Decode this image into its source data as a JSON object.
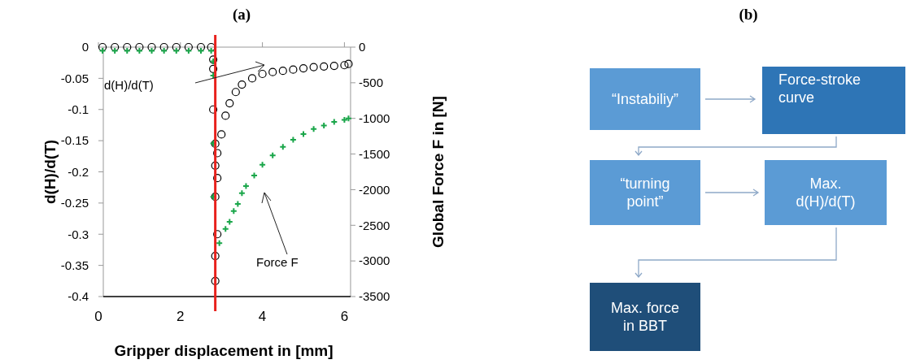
{
  "chart_data": [
    {
      "type": "scatter",
      "title": "(a)",
      "xlabel": "Gripper displacement in [mm]",
      "ylabel": "d(H)/d(T)",
      "y2label": "Global Force F in [N]",
      "xlim": [
        0,
        6.15
      ],
      "xticks": [
        0,
        2,
        4,
        6
      ],
      "ylim": [
        -0.4,
        0
      ],
      "yticks": [
        0,
        -0.05,
        -0.1,
        -0.15,
        -0.2,
        -0.25,
        -0.3,
        -0.35,
        -0.4
      ],
      "y2lim": [
        -3500,
        0
      ],
      "y2ticks": [
        0,
        -500,
        -1000,
        -1500,
        -2000,
        -2500,
        -3000,
        -3500
      ],
      "series": [
        {
          "color": "#000000",
          "marker": "circle",
          "x": [
            0.1,
            0.4,
            0.7,
            1.0,
            1.3,
            1.6,
            1.9,
            2.2,
            2.5,
            2.75,
            2.8,
            2.8,
            2.8,
            2.85,
            2.9,
            2.85,
            2.9,
            2.85,
            2.9,
            2.85,
            2.85,
            3.0,
            3.1,
            3.2,
            3.35,
            3.5,
            3.75,
            4.0,
            4.25,
            4.5,
            4.75,
            5.0,
            5.25,
            5.5,
            5.75,
            6.0,
            6.1
          ],
          "values": [
            0,
            0,
            0,
            0,
            0,
            0,
            0,
            0,
            0,
            0,
            -0.02,
            -0.035,
            -0.1,
            -0.155,
            -0.17,
            -0.19,
            -0.21,
            -0.24,
            -0.3,
            -0.335,
            -0.375,
            -0.14,
            -0.11,
            -0.09,
            -0.072,
            -0.06,
            -0.05,
            -0.043,
            -0.04,
            -0.038,
            -0.036,
            -0.034,
            -0.032,
            -0.031,
            -0.03,
            -0.029,
            -0.027
          ]
        },
        {
          "color": "#1aa64a",
          "marker": "cross",
          "axis": "y2",
          "x": [
            0.1,
            0.4,
            0.7,
            1.0,
            1.3,
            1.6,
            1.9,
            2.2,
            2.5,
            2.75,
            2.8,
            2.8,
            2.8,
            2.8,
            2.95,
            3.1,
            3.2,
            3.3,
            3.4,
            3.5,
            3.6,
            3.8,
            4.0,
            4.25,
            4.5,
            4.75,
            5.0,
            5.25,
            5.5,
            5.75,
            6.0,
            6.1
          ],
          "values": [
            -50,
            -50,
            -50,
            -50,
            -50,
            -50,
            -50,
            -50,
            -50,
            -50,
            -200,
            -400,
            -1350,
            -2100,
            -2750,
            -2550,
            -2450,
            -2300,
            -2200,
            -2050,
            -1950,
            -1800,
            -1650,
            -1520,
            -1400,
            -1300,
            -1220,
            -1150,
            -1100,
            -1050,
            -1020,
            -1000
          ]
        }
      ],
      "ref_lines": [
        {
          "axis": "x",
          "value": 2.85,
          "color": "#e8211c"
        }
      ],
      "annotations": [
        "d(H)/d(T)",
        "Force F"
      ]
    },
    {
      "type": "other",
      "title": "(b)",
      "annotations": [
        "“Instabiliy”",
        "Force-stroke curve",
        "“turning point”",
        "Max. d(H)/d(T)",
        "Max. force in BBT"
      ]
    }
  ]
}
